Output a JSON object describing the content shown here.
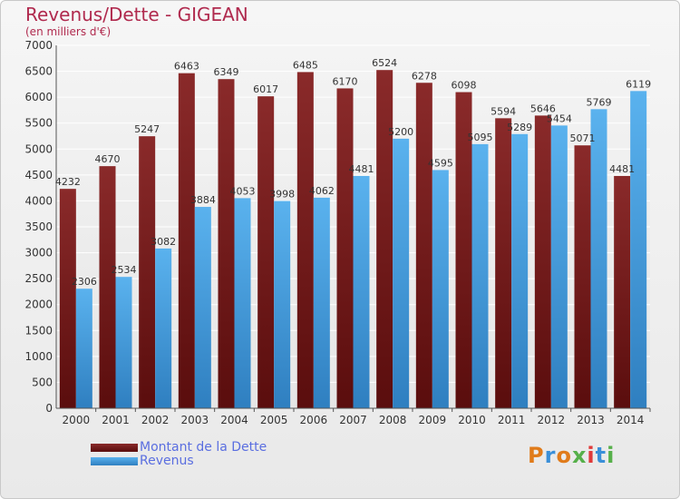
{
  "title": "Revenus/Dette - GIGEAN",
  "subtitle": "(en milliers d'€)",
  "logo_text": "Proxiti",
  "colors": {
    "dette": "#7a1f1f",
    "revenus": "#4aa3e3",
    "title": "#b02a4e",
    "legend": "#5a6ee0"
  },
  "chart_data": {
    "type": "bar",
    "title": "Revenus/Dette - GIGEAN",
    "subtitle": "(en milliers d'€)",
    "categories": [
      "2000",
      "2001",
      "2002",
      "2003",
      "2004",
      "2005",
      "2006",
      "2007",
      "2008",
      "2009",
      "2010",
      "2011",
      "2012",
      "2013",
      "2014"
    ],
    "series": [
      {
        "name": "Montant de la Dette",
        "values": [
          4232,
          4670,
          5247,
          6463,
          6349,
          6017,
          6485,
          6170,
          6524,
          6278,
          6098,
          5594,
          5646,
          5071,
          4481
        ]
      },
      {
        "name": "Revenus",
        "values": [
          2306,
          2534,
          3082,
          3884,
          4053,
          3998,
          4062,
          4481,
          5200,
          4595,
          5095,
          5289,
          5454,
          5769,
          6119
        ]
      }
    ],
    "data_labels": [
      [
        "4232",
        "4670",
        "5247",
        "6463",
        "6349",
        "6017",
        "6485",
        "6170",
        "6524",
        "6278",
        "6098",
        "5594",
        "5646",
        "5071",
        "4481"
      ],
      [
        "2306",
        "2534",
        "3082",
        "3884",
        "4053",
        "3998",
        "4062",
        "4481",
        "5200",
        "4595",
        "5095",
        "5289",
        "5454",
        "5769",
        "6119"
      ]
    ],
    "ylim": [
      0,
      7000
    ],
    "yticks": [
      0,
      500,
      1000,
      1500,
      2000,
      2500,
      3000,
      3500,
      4000,
      4500,
      5000,
      5500,
      6000,
      6500,
      7000
    ],
    "grid": true,
    "legend": "bottom-left"
  }
}
